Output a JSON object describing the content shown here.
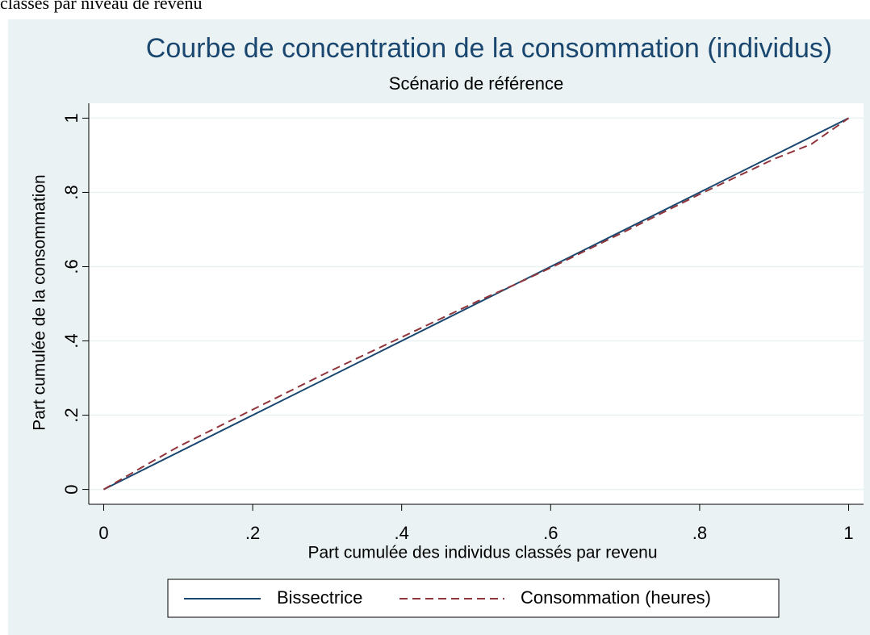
{
  "caption": "classés par niveau de revenu",
  "chart_data": {
    "type": "line",
    "title": "Courbe de concentration de la consommation (individus)",
    "subtitle": "Scénario de référence",
    "x_label": "Part cumulée des individus classés par revenu",
    "y_label": "Part cumulée de la consommation",
    "xlim": [
      -0.02,
      1.02
    ],
    "ylim": [
      -0.04,
      1.04
    ],
    "xticks": [
      0,
      {
        "value": 0.2,
        "label": ".2"
      },
      {
        "value": 0.4,
        "label": ".4"
      },
      {
        "value": 0.6,
        "label": ".6"
      },
      {
        "value": 0.8,
        "label": ".8"
      },
      1
    ],
    "yticks": [
      0,
      {
        "value": 0.2,
        "label": ".2"
      },
      {
        "value": 0.4,
        "label": ".4"
      },
      {
        "value": 0.6,
        "label": ".6"
      },
      {
        "value": 0.8,
        "label": ".8"
      },
      1
    ],
    "grid": true,
    "legend": "bottom",
    "series": [
      {
        "name": "Bissectrice",
        "color": "#1a476f",
        "dash": false,
        "x": [
          0,
          1
        ],
        "values": [
          0,
          1
        ]
      },
      {
        "name": "Consommation (heures)",
        "color": "#90353b",
        "dash": true,
        "x": [
          0,
          0.05,
          0.1,
          0.2,
          0.3,
          0.4,
          0.5,
          0.55,
          0.6,
          0.7,
          0.8,
          0.9,
          0.95,
          1
        ],
        "values": [
          0,
          0.058,
          0.115,
          0.215,
          0.315,
          0.41,
          0.505,
          0.55,
          0.597,
          0.695,
          0.795,
          0.89,
          0.93,
          1
        ]
      }
    ]
  }
}
